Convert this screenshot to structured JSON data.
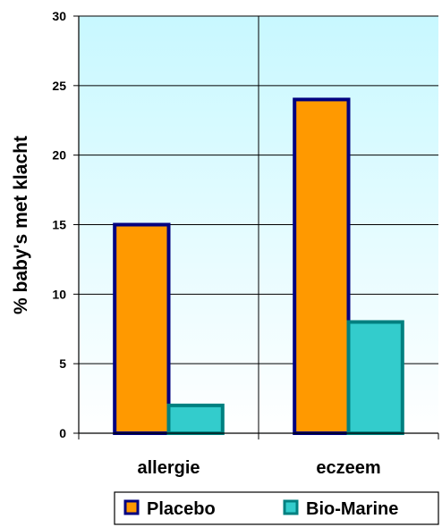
{
  "chart_data": {
    "type": "bar",
    "categories": [
      "allergie",
      "eczeem"
    ],
    "series": [
      {
        "name": "Placebo",
        "values": [
          15,
          24
        ],
        "color": "#FF9900",
        "border": "#000080"
      },
      {
        "name": "Bio-Marine",
        "values": [
          2,
          8
        ],
        "color": "#33CCCC",
        "border": "#008080"
      }
    ],
    "ylabel": "% baby's met klacht",
    "ylim": [
      0,
      30
    ],
    "yticks": [
      0,
      5,
      10,
      15,
      20,
      25,
      30
    ],
    "grid": true,
    "legend_position": "bottom-right",
    "background": "gradient light cyan"
  }
}
